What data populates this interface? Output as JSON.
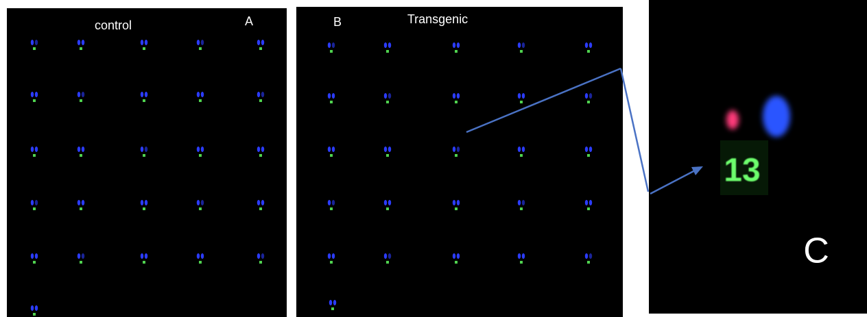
{
  "panels": [
    {
      "label": "A",
      "title": "control"
    },
    {
      "label": "B",
      "title": "Transgenic"
    },
    {
      "label": "C",
      "chromosome_number": "13"
    }
  ]
}
